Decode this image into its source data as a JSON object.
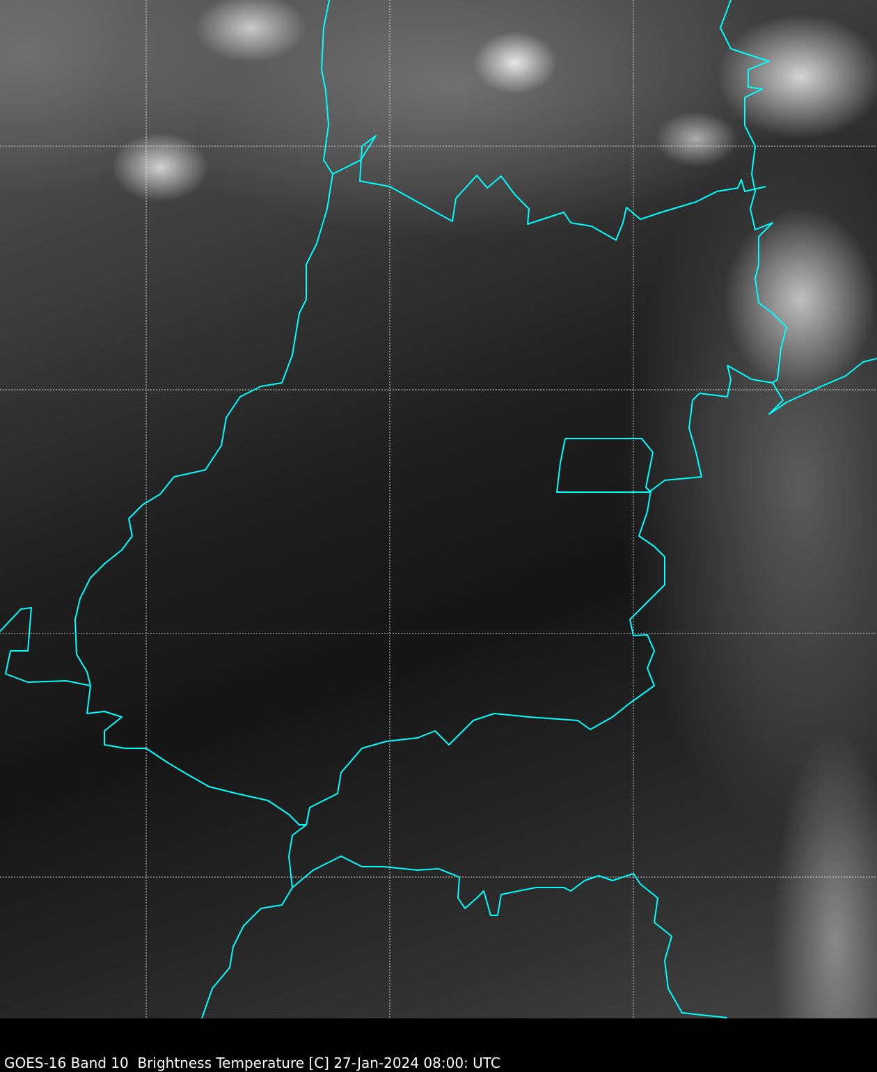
{
  "caption": "GOES-16 Band 10  Brightness Temperature [C] 27-Jan-2024 08:00: UTC",
  "colors": {
    "borders": "#00ffff",
    "gridlines": "#ffffff",
    "background": "#000000"
  },
  "map": {
    "gridlines": "dashed",
    "imagery": "grayscale infrared brightness temperature"
  }
}
